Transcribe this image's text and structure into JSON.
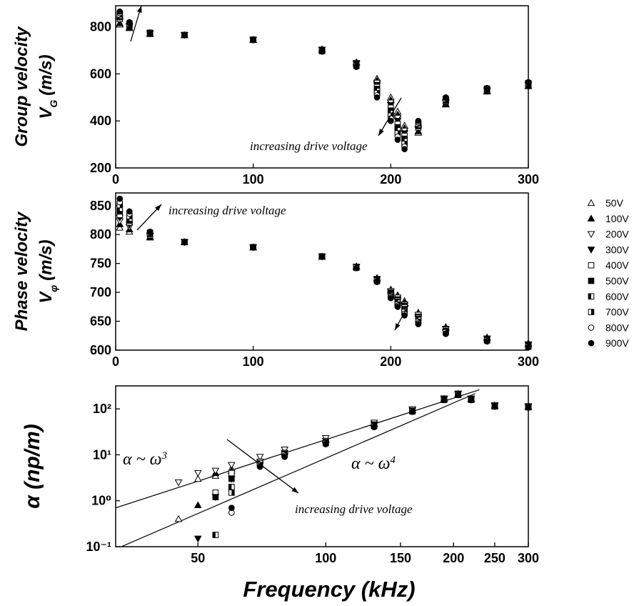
{
  "legend": [
    {
      "name": "50V",
      "marker": "triangle-up-open"
    },
    {
      "name": "100V",
      "marker": "triangle-up"
    },
    {
      "name": "200V",
      "marker": "triangle-down-open"
    },
    {
      "name": "300V",
      "marker": "triangle-down"
    },
    {
      "name": "400V",
      "marker": "square-open"
    },
    {
      "name": "500V",
      "marker": "square"
    },
    {
      "name": "600V",
      "marker": "square-left"
    },
    {
      "name": "700V",
      "marker": "square-right"
    },
    {
      "name": "800V",
      "marker": "circle-open"
    },
    {
      "name": "900V",
      "marker": "circle"
    }
  ],
  "chart_data": [
    {
      "type": "scatter",
      "color": "#000000",
      "ylabel": {
        "line1": "Group velocity",
        "symbol": "V",
        "sub": "G",
        "unit": "(m/s)"
      },
      "xlim": [
        0,
        300
      ],
      "xticks": [
        0,
        100,
        200,
        300
      ],
      "ylim": [
        200,
        890
      ],
      "yticks": [
        200,
        400,
        600,
        800
      ],
      "annotations": [
        {
          "text": "increasing drive voltage"
        }
      ],
      "x": [
        3,
        10,
        25,
        50,
        100,
        150,
        175,
        190,
        200,
        205,
        210,
        220,
        240,
        270,
        300
      ],
      "series": [
        {
          "values": [
            810,
            795,
            770,
            765,
            745,
            705,
            650,
            580,
            500,
            440,
            380,
            350,
            470,
            525,
            548
          ]
        },
        {
          "values": [
            816,
            798,
            771,
            765,
            745,
            704,
            648,
            571,
            489,
            427,
            369,
            356,
            473,
            527,
            550
          ]
        },
        {
          "values": [
            822,
            801,
            771,
            765,
            745,
            703,
            646,
            562,
            478,
            413,
            358,
            361,
            477,
            528,
            552
          ]
        },
        {
          "values": [
            828,
            803,
            772,
            765,
            745,
            702,
            643,
            553,
            467,
            400,
            347,
            367,
            480,
            530,
            554
          ]
        },
        {
          "values": [
            834,
            806,
            773,
            765,
            745,
            701,
            641,
            544,
            456,
            387,
            336,
            372,
            483,
            532,
            556
          ]
        },
        {
          "values": [
            841,
            809,
            773,
            765,
            745,
            699,
            639,
            536,
            444,
            373,
            324,
            378,
            487,
            533,
            557
          ]
        },
        {
          "values": [
            847,
            812,
            774,
            765,
            745,
            698,
            637,
            527,
            433,
            360,
            313,
            383,
            490,
            535,
            559
          ]
        },
        {
          "values": [
            853,
            814,
            775,
            765,
            745,
            697,
            634,
            518,
            422,
            347,
            302,
            389,
            493,
            537,
            561
          ]
        },
        {
          "values": [
            859,
            817,
            775,
            765,
            745,
            696,
            632,
            509,
            411,
            333,
            291,
            394,
            497,
            538,
            563
          ]
        },
        {
          "values": [
            865,
            820,
            776,
            765,
            745,
            695,
            630,
            500,
            400,
            320,
            280,
            400,
            500,
            540,
            565
          ]
        }
      ]
    },
    {
      "type": "scatter",
      "color": "#000000",
      "ylabel": {
        "line1": "Phase velocity",
        "symbol": "V",
        "sub": "φ",
        "unit": "(m/s)"
      },
      "xlim": [
        0,
        300
      ],
      "xticks": [
        0,
        100,
        200,
        300
      ],
      "ylim": [
        600,
        872
      ],
      "yticks": [
        600,
        650,
        700,
        750,
        800,
        850
      ],
      "annotations": [
        {
          "text": "increasing drive voltage"
        }
      ],
      "x": [
        3,
        10,
        25,
        50,
        100,
        150,
        175,
        190,
        200,
        205,
        210,
        220,
        240,
        270,
        300
      ],
      "series": [
        {
          "values": [
            812,
            805,
            795,
            787,
            778,
            762,
            745,
            725,
            705,
            695,
            685,
            665,
            640,
            622,
            612
          ]
        },
        {
          "values": [
            818,
            809,
            796,
            787,
            778,
            762,
            745,
            724,
            703,
            693,
            682,
            663,
            639,
            621,
            611
          ]
        },
        {
          "values": [
            823,
            813,
            797,
            787,
            778,
            762,
            744,
            723,
            702,
            691,
            679,
            661,
            637,
            620,
            610
          ]
        },
        {
          "values": [
            829,
            817,
            798,
            787,
            778,
            762,
            744,
            723,
            700,
            688,
            677,
            658,
            636,
            620,
            609
          ]
        },
        {
          "values": [
            834,
            821,
            799,
            787,
            778,
            762,
            744,
            722,
            698,
            686,
            674,
            656,
            635,
            619,
            608
          ]
        },
        {
          "values": [
            840,
            824,
            801,
            787,
            778,
            762,
            743,
            721,
            697,
            684,
            671,
            654,
            633,
            618,
            608
          ]
        },
        {
          "values": [
            845,
            828,
            802,
            787,
            778,
            762,
            743,
            720,
            695,
            682,
            668,
            652,
            632,
            617,
            607
          ]
        },
        {
          "values": [
            851,
            832,
            803,
            787,
            778,
            762,
            743,
            720,
            693,
            679,
            666,
            649,
            631,
            617,
            606
          ]
        },
        {
          "values": [
            856,
            836,
            804,
            787,
            778,
            762,
            742,
            719,
            692,
            677,
            663,
            647,
            629,
            616,
            605
          ]
        },
        {
          "values": [
            862,
            840,
            805,
            787,
            778,
            762,
            742,
            718,
            690,
            675,
            660,
            645,
            628,
            615,
            605
          ]
        }
      ]
    },
    {
      "type": "scatter",
      "color": "#000000",
      "xscale": "log",
      "yscale": "log",
      "ylabel": {
        "line1": "α (np/m)"
      },
      "xlabel": "Frequency (kHz)",
      "xlim": [
        32,
        300
      ],
      "xticks": [
        50,
        100,
        150,
        200,
        250,
        300
      ],
      "ylim": [
        0.1,
        316
      ],
      "yticks": [
        {
          "value": 0.1,
          "label": "10⁻¹"
        },
        {
          "value": 1,
          "label": "10⁰"
        },
        {
          "value": 10,
          "label": "10¹"
        },
        {
          "value": 100,
          "label": "10²"
        }
      ],
      "annotations": [
        {
          "text": "α ~ ω",
          "sup": "3"
        },
        {
          "text": "α ~ ω",
          "sup": "4"
        },
        {
          "text": "increasing drive voltage"
        }
      ],
      "lines": [
        {
          "x": [
            32,
            230
          ],
          "values": [
            0.7,
            260
          ]
        },
        {
          "x": [
            33,
            225
          ],
          "values": [
            0.1,
            216
          ]
        }
      ],
      "x": [
        45,
        50,
        55,
        60,
        70,
        80,
        100,
        130,
        160,
        190,
        205,
        220,
        250,
        300
      ],
      "series": [
        {
          "values": [
            0.4,
            3,
            3.5,
            5,
            8,
            12,
            22,
            48,
            95,
            165,
            210,
            165,
            118,
            112
          ]
        },
        {
          "values": [
            null,
            0.8,
            4,
            4.5,
            7.5,
            11.5,
            21,
            47,
            94,
            164,
            210,
            165,
            118,
            112
          ]
        },
        {
          "values": [
            2.5,
            4,
            4.5,
            6,
            9,
            13,
            23,
            50,
            98,
            168,
            215,
            168,
            120,
            114
          ]
        },
        {
          "values": [
            null,
            0.15,
            1.2,
            3,
            7,
            11,
            20,
            46,
            92,
            162,
            208,
            163,
            116,
            110
          ]
        },
        {
          "values": [
            null,
            null,
            1.5,
            4,
            7,
            11,
            20,
            45,
            91,
            160,
            205,
            160,
            115,
            110
          ]
        },
        {
          "values": [
            null,
            null,
            1.2,
            3,
            6.5,
            10.5,
            19,
            44,
            90,
            160,
            205,
            160,
            115,
            110
          ]
        },
        {
          "values": [
            null,
            null,
            0.18,
            2,
            6.5,
            10,
            18.5,
            43,
            89,
            158,
            203,
            158,
            114,
            109
          ]
        },
        {
          "values": [
            null,
            null,
            null,
            1.5,
            6,
            10,
            18,
            42,
            88,
            157,
            202,
            157,
            113,
            108
          ]
        },
        {
          "values": [
            null,
            null,
            null,
            0.55,
            5.5,
            9.5,
            17.5,
            41,
            87,
            156,
            200,
            156,
            112,
            108
          ]
        },
        {
          "values": [
            null,
            null,
            null,
            0.7,
            5.5,
            9,
            17,
            40,
            86,
            155,
            200,
            155,
            112,
            107
          ]
        }
      ]
    }
  ]
}
